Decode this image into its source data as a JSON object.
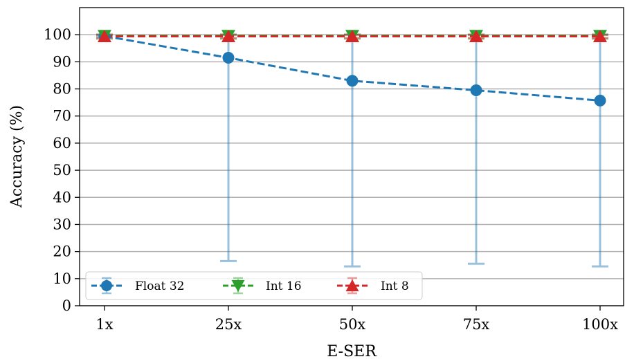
{
  "chart_data": {
    "type": "line",
    "xlabel": "E-SER",
    "ylabel": "Accuracy (%)",
    "categories": [
      "1x",
      "25x",
      "50x",
      "75x",
      "100x"
    ],
    "yticks": [
      0,
      10,
      20,
      30,
      40,
      50,
      60,
      70,
      80,
      90,
      100
    ],
    "ylim": [
      0,
      110
    ],
    "grid": "horizontal",
    "legend_position": "lower-left",
    "series": [
      {
        "name": "Float 32",
        "color": "#1f77b4",
        "marker": "circle",
        "linestyle": "dashed",
        "values": [
          99.5,
          91.5,
          83.0,
          79.5,
          75.7
        ],
        "error_lower": [
          99.3,
          16.5,
          14.5,
          15.5,
          14.5
        ],
        "error_upper": [
          100,
          100,
          100,
          100,
          100
        ]
      },
      {
        "name": "Int 16",
        "color": "#2ca02c",
        "marker": "triangle-down",
        "linestyle": "dashed",
        "values": [
          99.6,
          99.6,
          99.6,
          99.6,
          99.6
        ],
        "error_lower": [
          98.5,
          98.5,
          98.5,
          98.5,
          98.5
        ],
        "error_upper": [
          100,
          100,
          100,
          100,
          100
        ]
      },
      {
        "name": "Int 8",
        "color": "#d62728",
        "marker": "triangle-up",
        "linestyle": "dashed",
        "values": [
          99.4,
          99.4,
          99.4,
          99.4,
          99.4
        ],
        "error_lower": [
          98.8,
          98.8,
          98.8,
          98.8,
          98.8
        ],
        "error_upper": [
          100,
          100,
          100,
          100,
          100
        ]
      }
    ]
  }
}
